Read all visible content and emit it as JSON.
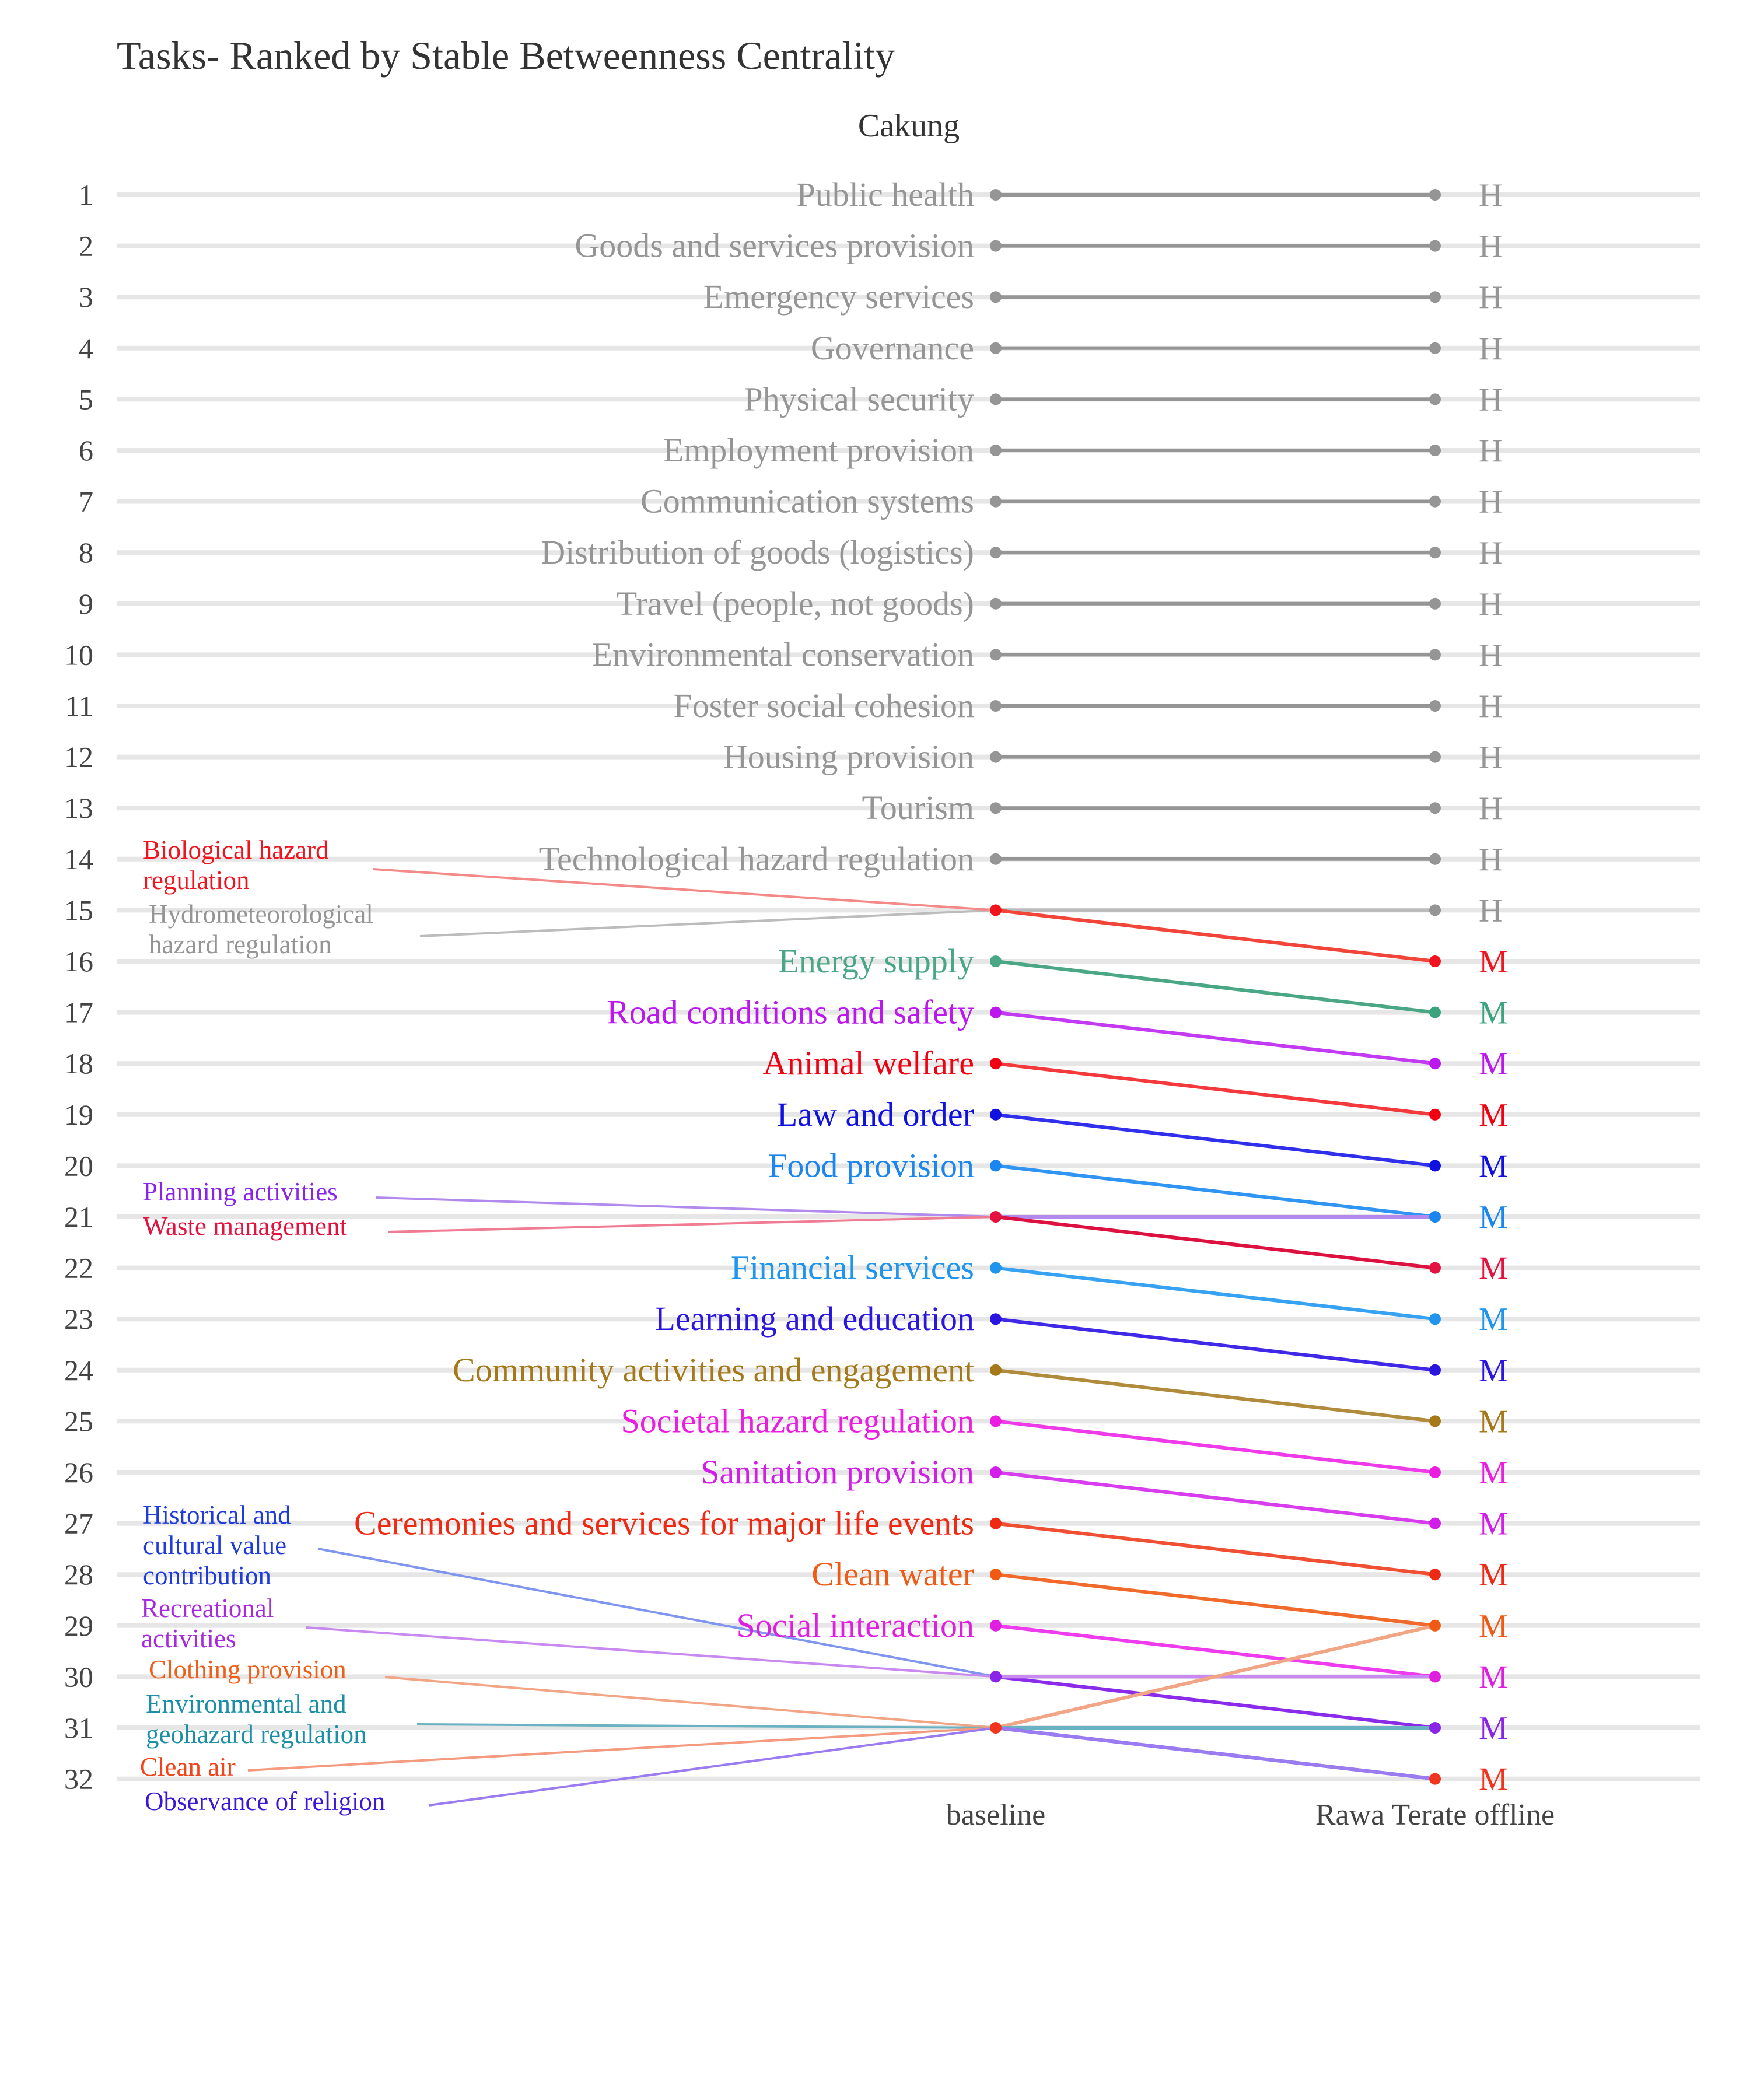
{
  "chart_data": {
    "type": "slope",
    "title": "Tasks- Ranked by Stable Betweenness Centrality",
    "subtitle": "Cakung",
    "x_categories": [
      "baseline",
      "Rawa Terate offline"
    ],
    "ranks": [
      1,
      2,
      3,
      4,
      5,
      6,
      7,
      8,
      9,
      10,
      11,
      12,
      13,
      14,
      15,
      16,
      17,
      18,
      19,
      20,
      21,
      22,
      23,
      24,
      25,
      26,
      27,
      28,
      29,
      30,
      31,
      32
    ],
    "tasks": [
      {
        "label": "Public health",
        "baseline_rank": 1,
        "offline_rank": 1,
        "group": "H",
        "color": "#959595",
        "label_pos": "center"
      },
      {
        "label": "Goods and services provision",
        "baseline_rank": 2,
        "offline_rank": 2,
        "group": "H",
        "color": "#959595",
        "label_pos": "center"
      },
      {
        "label": "Emergency services",
        "baseline_rank": 3,
        "offline_rank": 3,
        "group": "H",
        "color": "#959595",
        "label_pos": "center"
      },
      {
        "label": "Governance",
        "baseline_rank": 4,
        "offline_rank": 4,
        "group": "H",
        "color": "#959595",
        "label_pos": "center"
      },
      {
        "label": "Physical security",
        "baseline_rank": 5,
        "offline_rank": 5,
        "group": "H",
        "color": "#959595",
        "label_pos": "center"
      },
      {
        "label": "Employment provision",
        "baseline_rank": 6,
        "offline_rank": 6,
        "group": "H",
        "color": "#959595",
        "label_pos": "center"
      },
      {
        "label": "Communication systems",
        "baseline_rank": 7,
        "offline_rank": 7,
        "group": "H",
        "color": "#959595",
        "label_pos": "center"
      },
      {
        "label": "Distribution of goods (logistics)",
        "baseline_rank": 8,
        "offline_rank": 8,
        "group": "H",
        "color": "#959595",
        "label_pos": "center"
      },
      {
        "label": "Travel (people, not goods)",
        "baseline_rank": 9,
        "offline_rank": 9,
        "group": "H",
        "color": "#959595",
        "label_pos": "center"
      },
      {
        "label": "Environmental conservation",
        "baseline_rank": 10,
        "offline_rank": 10,
        "group": "H",
        "color": "#959595",
        "label_pos": "center"
      },
      {
        "label": "Foster social cohesion",
        "baseline_rank": 11,
        "offline_rank": 11,
        "group": "H",
        "color": "#959595",
        "label_pos": "center"
      },
      {
        "label": "Housing provision",
        "baseline_rank": 12,
        "offline_rank": 12,
        "group": "H",
        "color": "#959595",
        "label_pos": "center"
      },
      {
        "label": "Tourism",
        "baseline_rank": 13,
        "offline_rank": 13,
        "group": "H",
        "color": "#959595",
        "label_pos": "center"
      },
      {
        "label": "Technological hazard regulation",
        "baseline_rank": 14,
        "offline_rank": 14,
        "group": "H",
        "color": "#959595",
        "label_pos": "center"
      },
      {
        "label": "Hydrometeorological\nhazard regulation",
        "baseline_rank": 15,
        "offline_rank": 15,
        "group": "H",
        "color": "#bcbcbc",
        "text_color": "#959595",
        "label_pos": "side",
        "side_rank": 15.25
      },
      {
        "label": "Biological hazard\nregulation",
        "baseline_rank": 15,
        "offline_rank": 16,
        "group": "M",
        "color": "#f1453a",
        "text_color": "#f0141e",
        "leader_color": "#f48a88",
        "label_pos": "side",
        "side_rank": 14.3
      },
      {
        "label": "Energy supply",
        "baseline_rank": 16,
        "offline_rank": 17,
        "group": "M",
        "color": "#4aa786",
        "label_pos": "center"
      },
      {
        "label": "Road conditions and safety",
        "baseline_rank": 17,
        "offline_rank": 18,
        "group": "M",
        "color": "#c23bf3",
        "text_color": "#bb17ee",
        "label_pos": "center"
      },
      {
        "label": "Animal welfare",
        "baseline_rank": 18,
        "offline_rank": 19,
        "group": "M",
        "color": "#f3393b",
        "text_color": "#f00010",
        "label_pos": "center"
      },
      {
        "label": "Law and order",
        "baseline_rank": 19,
        "offline_rank": 20,
        "group": "M",
        "color": "#3030ec",
        "text_color": "#1010e0",
        "label_pos": "center"
      },
      {
        "label": "Food provision",
        "baseline_rank": 20,
        "offline_rank": 21,
        "group": "M",
        "color": "#2f94f2",
        "text_color": "#1b86ef",
        "label_pos": "center"
      },
      {
        "label": "Planning activities",
        "baseline_rank": 21,
        "offline_rank": 21,
        "group": "M",
        "color": "#b28aee",
        "text_color": "#8a24e8",
        "label_pos": "side",
        "side_rank": 20.75
      },
      {
        "label": "Waste management",
        "baseline_rank": 21,
        "offline_rank": 22,
        "group": "M",
        "color": "#dc1140",
        "text_color": "#e4123f",
        "leader_color": "#f07c94",
        "label_pos": "side",
        "side_rank": 21.4
      },
      {
        "label": "Financial services",
        "baseline_rank": 22,
        "offline_rank": 23,
        "group": "M",
        "color": "#37a2f1",
        "text_color": "#1f95ee",
        "label_pos": "center"
      },
      {
        "label": "Learning and education",
        "baseline_rank": 23,
        "offline_rank": 24,
        "group": "M",
        "color": "#3f28e6",
        "text_color": "#2a16df",
        "label_pos": "center"
      },
      {
        "label": "Community activities and engagement",
        "baseline_rank": 24,
        "offline_rank": 25,
        "group": "M",
        "color": "#b08b3c",
        "text_color": "#a5791a",
        "label_pos": "center"
      },
      {
        "label": "Societal hazard regulation",
        "baseline_rank": 25,
        "offline_rank": 26,
        "group": "M",
        "color": "#ee3ae8",
        "text_color": "#eb1de1",
        "label_pos": "center"
      },
      {
        "label": "Sanitation provision",
        "baseline_rank": 26,
        "offline_rank": 27,
        "group": "M",
        "color": "#d83ded",
        "text_color": "#d31de8",
        "label_pos": "center"
      },
      {
        "label": "Ceremonies and services for major life events",
        "baseline_rank": 27,
        "offline_rank": 28,
        "group": "M",
        "color": "#ef5033",
        "text_color": "#ef2a14",
        "label_pos": "center"
      },
      {
        "label": "Clean water",
        "baseline_rank": 28,
        "offline_rank": 29,
        "group": "M",
        "color": "#f06a2b",
        "text_color": "#f05a14",
        "label_pos": "center"
      },
      {
        "label": "Social interaction",
        "baseline_rank": 29,
        "offline_rank": 30,
        "group": "M",
        "color": "#ee3bed",
        "text_color": "#df1ee0",
        "label_pos": "center"
      },
      {
        "label": "Historical and\ncultural value\ncontribution",
        "baseline_rank": 30,
        "offline_rank": 31,
        "group": "M",
        "color": "#8a2be9",
        "text_color": "#1f3bd8",
        "leader_color": "#7f95ef",
        "label_pos": "side",
        "side_rank": 27.55
      },
      {
        "label": "Recreational\nactivities",
        "baseline_rank": 30,
        "offline_rank": 30,
        "group": "M",
        "color": "#c88af0",
        "text_color": "#a82adf",
        "label_pos": "side",
        "side_rank": 29.15
      },
      {
        "label": "Clothing provision",
        "baseline_rank": 31,
        "offline_rank": 29,
        "group": "M",
        "color": "#f2a585",
        "text_color": "#f05f1a",
        "label_pos": "side",
        "side_rank": 30.05
      },
      {
        "label": "Environmental and\ngeohazard regulation",
        "baseline_rank": 31,
        "offline_rank": 31,
        "group": "M",
        "color": "#6ab2c2",
        "text_color": "#1a8fa6",
        "label_pos": "side",
        "side_rank": 30.92
      },
      {
        "label": "Clean air",
        "baseline_rank": 31,
        "offline_rank": 32,
        "group": "M",
        "color": "#3c1fdd",
        "text_color": "#f2431a",
        "leader_color": "#f39a7f",
        "label_pos": "side",
        "side_rank": 32.0
      },
      {
        "label": "Observance of religion",
        "baseline_rank": 31,
        "offline_rank": 32,
        "group": "M",
        "color": "#9b7cf0",
        "text_color": "#3b18d8",
        "label_pos": "side",
        "side_rank": 32.7
      }
    ],
    "right_group_colors": [
      "#959595",
      "#959595",
      "#959595",
      "#959595",
      "#959595",
      "#959595",
      "#959595",
      "#959595",
      "#959595",
      "#959595",
      "#959595",
      "#959595",
      "#959595",
      "#959595",
      "#959595",
      "#f0141e",
      "#3aa47f",
      "#bb17ee",
      "#f00010",
      "#1010e0",
      "#1b86ef",
      "#e4123f",
      "#1f95ee",
      "#2a16df",
      "#a5791a",
      "#eb1de1",
      "#d31de8",
      "#ef2a14",
      "#f05a14",
      "#df1ee0",
      "#8a24e8",
      "#f0341e"
    ],
    "right_dot_colors": [
      "#959595",
      "#959595",
      "#959595",
      "#959595",
      "#959595",
      "#959595",
      "#959595",
      "#959595",
      "#959595",
      "#959595",
      "#959595",
      "#959595",
      "#959595",
      "#959595",
      "#959595",
      "#f0141e",
      "#3aa47f",
      "#bb17ee",
      "#f00010",
      "#1010e0",
      "#1b86ef",
      "#e4123f",
      "#1f95ee",
      "#2a16df",
      "#a5791a",
      "#eb1de1",
      "#d31de8",
      "#ef2a14",
      "#f05a14",
      "#df1ee0",
      "#8a24e8",
      "#f0341e"
    ],
    "right_group_labels": [
      "H",
      "H",
      "H",
      "H",
      "H",
      "H",
      "H",
      "H",
      "H",
      "H",
      "H",
      "H",
      "H",
      "H",
      "H",
      "M",
      "M",
      "M",
      "M",
      "M",
      "M",
      "M",
      "M",
      "M",
      "M",
      "M",
      "M",
      "M",
      "M",
      "M",
      "M",
      "M"
    ],
    "baseline_dot_colors": {
      "15": "#f0141e",
      "21": "#e4123f",
      "30": "#8a24e8",
      "31": "#f0341e"
    },
    "grid": true
  }
}
